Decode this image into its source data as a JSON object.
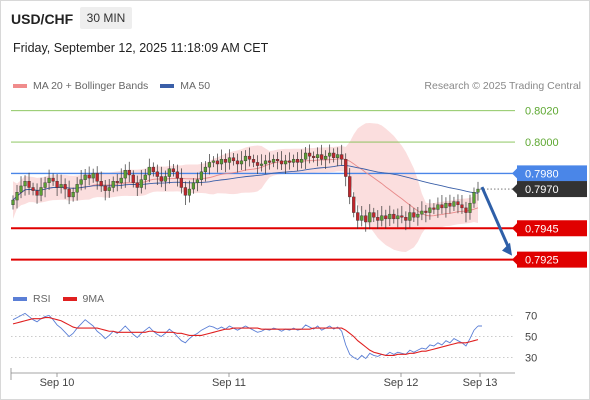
{
  "header": {
    "symbol": "USD/CHF",
    "interval": "30 MIN",
    "datetime": "Friday, September 12, 2025 11:18:09 AM CET"
  },
  "legend": {
    "items": [
      {
        "label": "MA 20 + Bollinger Bands",
        "color": "#f08c8c"
      },
      {
        "label": "MA 50",
        "color": "#3a5fa8"
      }
    ],
    "research": "Research © 2025 Trading Central"
  },
  "rsi_legend": {
    "items": [
      {
        "label": "RSI",
        "color": "#5b7fd6"
      },
      {
        "label": "9MA",
        "color": "#e02020"
      }
    ]
  },
  "chart_data": [
    {
      "type": "candlestick",
      "x_labels": [
        "Sep 10",
        "Sep 11",
        "Sep 12",
        "Sep 13"
      ],
      "ylim": [
        0.7912,
        0.803
      ],
      "price_levels": [
        {
          "label": "0.8020",
          "value": 0.802,
          "kind": "resistance-minor",
          "color": "#7fbf4d"
        },
        {
          "label": "0.8000",
          "value": 0.8,
          "kind": "resistance-minor",
          "color": "#7fbf4d"
        },
        {
          "label": "0.7980",
          "value": 0.798,
          "kind": "pivot",
          "color": "#4a86e8"
        },
        {
          "label": "0.7970",
          "value": 0.797,
          "kind": "last-price",
          "color": "#333333"
        },
        {
          "label": "0.7945",
          "value": 0.7945,
          "kind": "target",
          "color": "#e00000"
        },
        {
          "label": "0.7925",
          "value": 0.7925,
          "kind": "target",
          "color": "#e00000"
        }
      ],
      "forecast_arrow": {
        "from": 0.797,
        "to": 0.7925,
        "direction": "down",
        "color": "#2e5fa8"
      },
      "close_series": [
        0.7963,
        0.7968,
        0.7972,
        0.7975,
        0.7971,
        0.7969,
        0.7966,
        0.7971,
        0.7974,
        0.7977,
        0.7975,
        0.7971,
        0.7973,
        0.797,
        0.7965,
        0.7968,
        0.7973,
        0.7976,
        0.7979,
        0.7977,
        0.798,
        0.7975,
        0.7972,
        0.7969,
        0.7971,
        0.7975,
        0.7974,
        0.7977,
        0.7982,
        0.7979,
        0.7974,
        0.7971,
        0.7976,
        0.7979,
        0.7984,
        0.7981,
        0.7978,
        0.7975,
        0.7978,
        0.7983,
        0.7981,
        0.7977,
        0.7971,
        0.7966,
        0.797,
        0.7974,
        0.7976,
        0.7981,
        0.7984,
        0.7987,
        0.7988,
        0.7986,
        0.7989,
        0.7987,
        0.799,
        0.7988,
        0.7986,
        0.7988,
        0.7991,
        0.7989,
        0.7987,
        0.7985,
        0.7986,
        0.7988,
        0.7987,
        0.7989,
        0.7988,
        0.7986,
        0.7988,
        0.7987,
        0.7989,
        0.7987,
        0.7989,
        0.7993,
        0.7991,
        0.799,
        0.7992,
        0.7989,
        0.7991,
        0.7993,
        0.799,
        0.7992,
        0.7989,
        0.7978,
        0.7965,
        0.7955,
        0.795,
        0.7953,
        0.7949,
        0.7955,
        0.7952,
        0.795,
        0.7953,
        0.7951,
        0.7954,
        0.7951,
        0.7953,
        0.7952,
        0.795,
        0.7955,
        0.7952,
        0.7954,
        0.7956,
        0.7955,
        0.7958,
        0.7957,
        0.796,
        0.7958,
        0.7961,
        0.7959,
        0.7962,
        0.796,
        0.7958,
        0.7955,
        0.7961,
        0.7968,
        0.797
      ]
    },
    {
      "type": "line",
      "ylabel": "",
      "ylim": [
        20,
        80
      ],
      "ticks": [
        "70",
        "50",
        "30"
      ],
      "tick_values": [
        70,
        50,
        30
      ],
      "series": [
        {
          "name": "RSI",
          "color": "#5b7fd6",
          "values": [
            66,
            68,
            70,
            72,
            69,
            66,
            64,
            67,
            69,
            70,
            66,
            61,
            58,
            54,
            50,
            53,
            58,
            62,
            66,
            63,
            60,
            55,
            52,
            48,
            51,
            55,
            53,
            56,
            60,
            56,
            52,
            49,
            53,
            56,
            59,
            55,
            52,
            50,
            53,
            57,
            54,
            50,
            46,
            44,
            48,
            51,
            53,
            56,
            58,
            60,
            59,
            57,
            59,
            57,
            60,
            58,
            56,
            58,
            60,
            58,
            56,
            54,
            55,
            57,
            56,
            58,
            57,
            55,
            57,
            56,
            58,
            56,
            57,
            61,
            59,
            57,
            60,
            56,
            58,
            60,
            57,
            59,
            55,
            42,
            33,
            30,
            28,
            32,
            29,
            34,
            32,
            31,
            33,
            32,
            35,
            33,
            35,
            34,
            33,
            37,
            35,
            37,
            39,
            38,
            42,
            41,
            44,
            42,
            46,
            44,
            48,
            46,
            44,
            41,
            48,
            56,
            60
          ]
        },
        {
          "name": "9MA",
          "color": "#e02020",
          "values": [
            62,
            63,
            64,
            65,
            66,
            67,
            67,
            67,
            68,
            68,
            67,
            66,
            65,
            63,
            61,
            59,
            58,
            58,
            58,
            58,
            58,
            58,
            57,
            56,
            55,
            55,
            54,
            54,
            54,
            54,
            54,
            54,
            54,
            54,
            55,
            55,
            54,
            54,
            54,
            54,
            54,
            53,
            53,
            52,
            51,
            51,
            51,
            51,
            52,
            53,
            54,
            55,
            56,
            57,
            57,
            58,
            58,
            58,
            58,
            58,
            58,
            58,
            57,
            57,
            57,
            57,
            57,
            57,
            57,
            57,
            57,
            57,
            57,
            57,
            57,
            58,
            58,
            58,
            58,
            58,
            58,
            58,
            58,
            56,
            53,
            50,
            46,
            43,
            40,
            37,
            35,
            34,
            33,
            32,
            32,
            32,
            33,
            33,
            33,
            34,
            34,
            35,
            36,
            36,
            37,
            38,
            39,
            40,
            41,
            42,
            43,
            44,
            44,
            44,
            45,
            46,
            47
          ]
        }
      ]
    }
  ]
}
